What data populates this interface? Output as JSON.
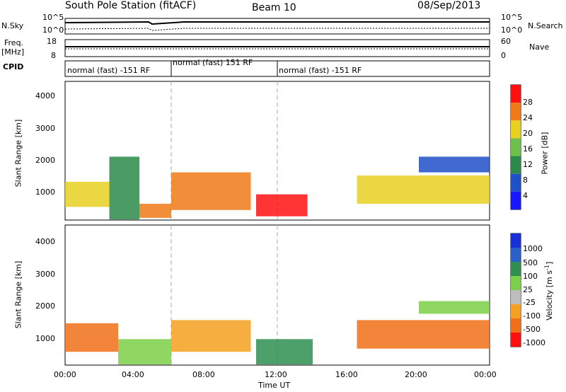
{
  "header": {
    "station": "South Pole Station (fitACF)",
    "beam": "Beam 10",
    "date": "08/Sep/2013"
  },
  "noise_panel": {
    "left_label": "N.Sky",
    "right_label": "N.Search",
    "ticks": [
      "10^5",
      "10^0"
    ]
  },
  "freq_panel": {
    "left_label_1": "Freq.",
    "left_label_2": "[MHz]",
    "left_ticks": [
      "18",
      "8"
    ],
    "right_label": "Nave",
    "right_ticks": [
      "60",
      "0"
    ]
  },
  "cpid": {
    "label": "CPID",
    "segments": [
      {
        "label": "normal (fast) -151 RF",
        "start_hour": 0,
        "end_hour": 6
      },
      {
        "label": "normal (fast) 151 RF",
        "start_hour": 6,
        "end_hour": 12
      },
      {
        "label": "normal (fast) -151 RF",
        "start_hour": 12,
        "end_hour": 24
      }
    ]
  },
  "axes": {
    "ylabel": "Slant Range [km]",
    "yticks": [
      "1000",
      "2000",
      "3000",
      "4000"
    ],
    "xlabel": "Time UT",
    "xticks": [
      "00:00",
      "04:00",
      "08:00",
      "12:00",
      "16:00",
      "20:00",
      "00:00"
    ]
  },
  "power_colorbar": {
    "label": "Power [dB]",
    "ticks": [
      "4",
      "8",
      "12",
      "16",
      "20",
      "24",
      "28"
    ],
    "colors": [
      "#1818ff",
      "#2050c8",
      "#2b8a4a",
      "#6ec04a",
      "#e8d020",
      "#f07a18",
      "#ff1010"
    ]
  },
  "velocity_colorbar": {
    "label": "Velocity [m s",
    "label_sup": "-1",
    "label_end": "]",
    "ticks": [
      "1000",
      "500",
      "100",
      "25",
      "-25",
      "-100",
      "-500",
      "-1000"
    ],
    "colors": [
      "#1830d8",
      "#2a60c8",
      "#2f8f50",
      "#7ccf48",
      "#bdbdbd",
      "#f5a020",
      "#f07018",
      "#ff1010"
    ]
  },
  "chart_data": [
    {
      "type": "heatmap",
      "title": "Power",
      "xlabel": "Time UT",
      "ylabel": "Slant Range [km]",
      "xlim_hours": [
        0,
        24
      ],
      "ylim_km": [
        180,
        4600
      ],
      "regions": [
        {
          "start_hour": 0.0,
          "end_hour": 2.5,
          "range_min_km": 600,
          "range_max_km": 1400,
          "level_db": 20
        },
        {
          "start_hour": 2.5,
          "end_hour": 4.2,
          "range_min_km": 200,
          "range_max_km": 2200,
          "level_db": 10
        },
        {
          "start_hour": 4.2,
          "end_hour": 6.0,
          "range_min_km": 250,
          "range_max_km": 700,
          "level_db": 24
        },
        {
          "start_hour": 6.0,
          "end_hour": 10.5,
          "range_min_km": 500,
          "range_max_km": 1700,
          "level_db": 22
        },
        {
          "start_hour": 10.8,
          "end_hour": 13.7,
          "range_min_km": 300,
          "range_max_km": 1000,
          "level_db": 26
        },
        {
          "start_hour": 16.5,
          "end_hour": 24.0,
          "range_min_km": 700,
          "range_max_km": 1600,
          "level_db": 18
        },
        {
          "start_hour": 20.0,
          "end_hour": 24.0,
          "range_min_km": 1700,
          "range_max_km": 2200,
          "level_db": 8
        }
      ]
    },
    {
      "type": "heatmap",
      "title": "Velocity",
      "xlabel": "Time UT",
      "ylabel": "Slant Range [km]",
      "xlim_hours": [
        0,
        24
      ],
      "ylim_km": [
        180,
        4600
      ],
      "regions": [
        {
          "start_hour": 0.0,
          "end_hour": 3.0,
          "range_min_km": 600,
          "range_max_km": 1500,
          "velocity": -300
        },
        {
          "start_hour": 3.0,
          "end_hour": 6.0,
          "range_min_km": 200,
          "range_max_km": 1000,
          "velocity": 50
        },
        {
          "start_hour": 6.0,
          "end_hour": 10.5,
          "range_min_km": 600,
          "range_max_km": 1600,
          "velocity": -200
        },
        {
          "start_hour": 10.8,
          "end_hour": 14.0,
          "range_min_km": 200,
          "range_max_km": 1000,
          "velocity": 60
        },
        {
          "start_hour": 16.5,
          "end_hour": 24.0,
          "range_min_km": 700,
          "range_max_km": 1600,
          "velocity": -300
        },
        {
          "start_hour": 20.0,
          "end_hour": 24.0,
          "range_min_km": 1800,
          "range_max_km": 2200,
          "velocity": 0
        }
      ]
    }
  ]
}
